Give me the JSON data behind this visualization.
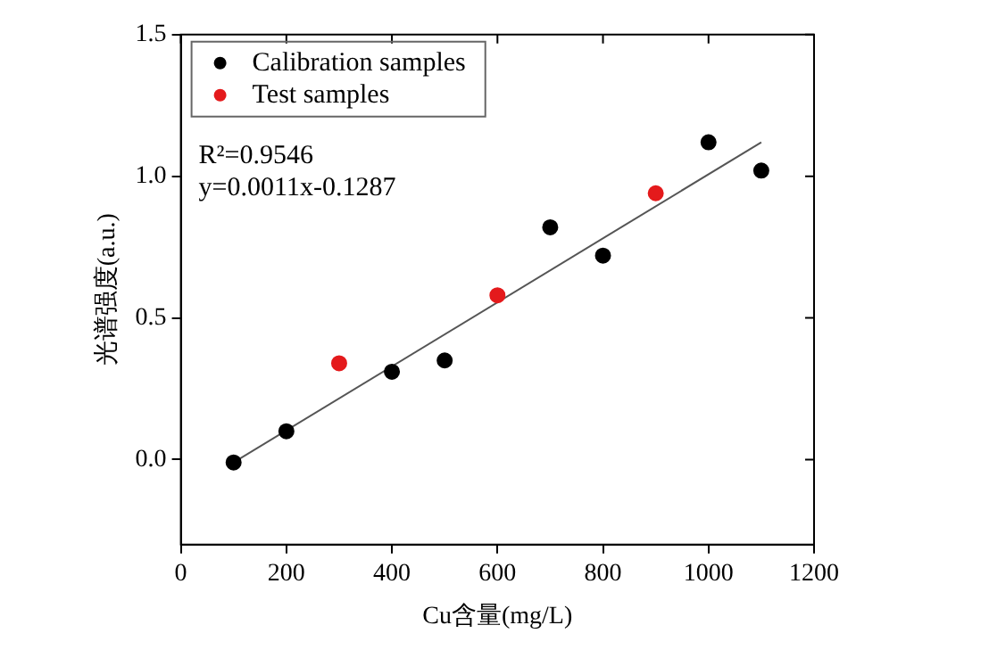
{
  "chart_data": {
    "type": "scatter",
    "xlabel": "Cu含量(mg/L)",
    "ylabel": "光谱强度(a.u.)",
    "xlim": [
      0,
      1200
    ],
    "xticks": [
      0,
      200,
      400,
      600,
      800,
      1000,
      1200
    ],
    "ylim": [
      -0.3,
      1.5
    ],
    "yticks": [
      {
        "value": 0,
        "label": "0.0"
      },
      {
        "value": 0.5,
        "label": "0.5"
      },
      {
        "value": 1,
        "label": "1.0"
      },
      {
        "value": 1.5,
        "label": "1.5"
      }
    ],
    "series": [
      {
        "name": "Calibration samples",
        "color": "#000000",
        "marker": "circle",
        "x": [
          100,
          200,
          400,
          500,
          700,
          800,
          1000,
          1100
        ],
        "values": [
          -0.01,
          0.1,
          0.31,
          0.35,
          0.82,
          0.72,
          1.12,
          1.02
        ]
      },
      {
        "name": "Test samples",
        "color": "#e41a1c",
        "marker": "circle",
        "x": [
          300,
          600,
          900
        ],
        "values": [
          0.34,
          0.58,
          0.94
        ]
      },
      {
        "type": "line",
        "color": "#555555",
        "marker": "none",
        "x": [
          100,
          1100
        ],
        "values": [
          -0.01,
          1.12
        ]
      }
    ],
    "annotations": [
      "R²=0.9546",
      "y=0.0011x-0.1287"
    ],
    "grid": false,
    "legend": "top left"
  }
}
